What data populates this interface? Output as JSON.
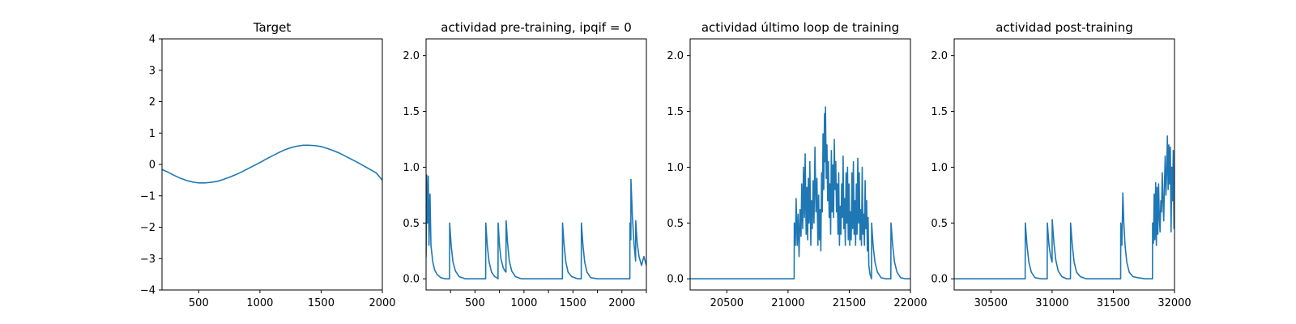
{
  "chart_data": [
    {
      "type": "line",
      "title": "Target",
      "xlim": [
        200,
        2000
      ],
      "ylim": [
        -4,
        4
      ],
      "xticks": [
        500,
        1000,
        1500,
        2000
      ],
      "yticks": [
        -4,
        -3,
        -2,
        -1,
        0,
        1,
        2,
        3,
        4
      ],
      "xticklabels": [
        "500",
        "1000",
        "1500",
        "2000"
      ],
      "yticklabels": [
        "−4",
        "−3",
        "−2",
        "−1",
        "0",
        "1",
        "2",
        "3",
        "4"
      ],
      "color": "#1f77b4",
      "series": [
        {
          "x": [
            200,
            250,
            300,
            350,
            400,
            450,
            500,
            550,
            600,
            650,
            700,
            750,
            800,
            850,
            900,
            950,
            1000,
            1050,
            1100,
            1150,
            1200,
            1250,
            1300,
            1350,
            1400,
            1450,
            1500,
            1550,
            1600,
            1650,
            1700,
            1750,
            1800,
            1850,
            1900,
            1950,
            2000
          ],
          "y": [
            -0.16,
            -0.25,
            -0.35,
            -0.44,
            -0.51,
            -0.56,
            -0.59,
            -0.59,
            -0.57,
            -0.54,
            -0.48,
            -0.41,
            -0.33,
            -0.24,
            -0.14,
            -0.04,
            0.06,
            0.17,
            0.27,
            0.37,
            0.46,
            0.53,
            0.58,
            0.61,
            0.61,
            0.6,
            0.57,
            0.51,
            0.44,
            0.36,
            0.26,
            0.16,
            0.06,
            -0.05,
            -0.16,
            -0.27,
            -0.5
          ]
        }
      ]
    },
    {
      "type": "line",
      "title": "actividad pre-training, ipqif = 0",
      "xlim": [
        200,
        2000
      ],
      "ylim": [
        -0.1,
        2.15
      ],
      "xticks": [
        400,
        600,
        800,
        1000,
        1200,
        1400,
        1600,
        1800,
        2000
      ],
      "yticks": [
        0,
        0.5,
        1,
        1.5,
        2
      ],
      "xticklabels": [
        "",
        "500",
        "",
        "1000",
        "",
        "1500",
        "",
        "2000",
        ""
      ],
      "yticklabels": [
        "0.0",
        "0.5",
        "1.0",
        "1.5",
        "2.0"
      ],
      "color": "#1f77b4",
      "series": [
        {
          "x": [
            200,
            205,
            212,
            218,
            224,
            232,
            240,
            255,
            270,
            290,
            320,
            360,
            392,
            393,
            405,
            420,
            440,
            470,
            520,
            600,
            680,
            687,
            688,
            700,
            715,
            735,
            760,
            778,
            788,
            789,
            800,
            812,
            830,
            845,
            853,
            854,
            866,
            880,
            900,
            930,
            980,
            1100,
            1200,
            1314,
            1315,
            1328,
            1342,
            1360,
            1390,
            1440,
            1468,
            1469,
            1482,
            1496,
            1515,
            1545,
            1600,
            1700,
            1780,
            1865,
            1866,
            1873,
            1874,
            1886,
            1900,
            1912,
            1913,
            1925,
            1940,
            1960,
            1980,
            2000
          ],
          "y": [
            0.2,
            0.93,
            0.5,
            0.92,
            0.3,
            0.76,
            0.3,
            0.15,
            0.08,
            0.04,
            0.01,
            0.0,
            0.0,
            0.5,
            0.3,
            0.15,
            0.07,
            0.02,
            0.0,
            0.0,
            0.0,
            0.0,
            0.5,
            0.3,
            0.15,
            0.06,
            0.02,
            0.01,
            0.0,
            0.5,
            0.3,
            0.18,
            0.1,
            0.07,
            0.06,
            0.52,
            0.32,
            0.16,
            0.07,
            0.02,
            0.0,
            0.0,
            0.0,
            0.0,
            0.5,
            0.3,
            0.15,
            0.06,
            0.02,
            0.0,
            0.0,
            0.5,
            0.3,
            0.15,
            0.06,
            0.01,
            0.0,
            0.0,
            0.0,
            0.0,
            0.5,
            0.35,
            0.89,
            0.55,
            0.3,
            0.16,
            0.52,
            0.32,
            0.2,
            0.12,
            0.2,
            0.12
          ]
        }
      ]
    },
    {
      "type": "line",
      "title": "actividad último loop de training",
      "xlim": [
        20200,
        22000
      ],
      "ylim": [
        -0.1,
        2.15
      ],
      "xticks": [
        20500,
        21000,
        21500,
        22000
      ],
      "yticks": [
        0,
        0.5,
        1,
        1.5,
        2
      ],
      "xticklabels": [
        "20500",
        "21000",
        "21500",
        "22000"
      ],
      "yticklabels": [
        "0.0",
        "0.5",
        "1.0",
        "1.5",
        "2.0"
      ],
      "color": "#1f77b4",
      "series": [
        {
          "x": [
            20200,
            21050,
            21051,
            21060,
            21066,
            21075,
            21082,
            21090,
            21098,
            21106,
            21112,
            21120,
            21126,
            21134,
            21140,
            21148,
            21154,
            21160,
            21166,
            21172,
            21178,
            21186,
            21192,
            21198,
            21205,
            21212,
            21220,
            21228,
            21236,
            21244,
            21250,
            21256,
            21262,
            21268,
            21274,
            21280,
            21286,
            21292,
            21298,
            21302,
            21306,
            21312,
            21318,
            21324,
            21330,
            21336,
            21342,
            21348,
            21354,
            21360,
            21366,
            21372,
            21378,
            21384,
            21390,
            21396,
            21402,
            21408,
            21414,
            21420,
            21426,
            21432,
            21438,
            21444,
            21450,
            21456,
            21462,
            21468,
            21474,
            21480,
            21486,
            21492,
            21498,
            21504,
            21510,
            21516,
            21522,
            21528,
            21534,
            21540,
            21546,
            21552,
            21558,
            21564,
            21570,
            21576,
            21582,
            21588,
            21594,
            21600,
            21606,
            21612,
            21618,
            21624,
            21630,
            21636,
            21642,
            21648,
            21654,
            21660,
            21670,
            21682,
            21683,
            21695,
            21710,
            21730,
            21760,
            21800,
            21840,
            21841,
            21855,
            21870,
            21890,
            21920,
            21960,
            22000
          ],
          "y": [
            0.0,
            0.0,
            0.5,
            0.3,
            0.72,
            0.3,
            0.58,
            0.2,
            0.62,
            0.38,
            0.85,
            0.45,
            1.0,
            0.55,
            1.12,
            0.4,
            0.82,
            0.35,
            0.9,
            0.5,
            1.05,
            0.3,
            0.7,
            0.45,
            0.88,
            0.5,
            1.18,
            0.6,
            0.9,
            0.3,
            0.75,
            0.35,
            0.62,
            0.25,
            0.95,
            0.6,
            1.3,
            0.8,
            1.48,
            1.05,
            1.54,
            0.9,
            1.2,
            0.7,
            1.05,
            0.55,
            0.85,
            0.4,
            1.15,
            0.6,
            1.02,
            0.55,
            1.25,
            0.8,
            1.05,
            0.6,
            0.85,
            0.4,
            0.95,
            0.3,
            0.65,
            0.4,
            0.85,
            0.55,
            1.1,
            0.45,
            0.72,
            0.3,
            0.95,
            0.5,
            1.0,
            0.35,
            0.85,
            0.3,
            0.6,
            0.35,
            0.95,
            0.45,
            1.05,
            0.4,
            0.7,
            0.3,
            0.85,
            0.4,
            1.08,
            0.5,
            0.95,
            0.35,
            0.62,
            0.3,
            1.0,
            0.4,
            0.58,
            0.3,
            0.88,
            0.45,
            0.7,
            0.25,
            0.55,
            0.12,
            0.04,
            0.0,
            0.5,
            0.3,
            0.15,
            0.06,
            0.01,
            0.0,
            0.0,
            0.5,
            0.3,
            0.15,
            0.06,
            0.01,
            0.0,
            0.0
          ]
        }
      ]
    },
    {
      "type": "line",
      "title": "actividad post-training",
      "xlim": [
        30200,
        32000
      ],
      "ylim": [
        -0.1,
        2.15
      ],
      "xticks": [
        30500,
        31000,
        31500,
        32000
      ],
      "yticks": [
        0,
        0.5,
        1,
        1.5,
        2
      ],
      "xticklabels": [
        "30500",
        "31000",
        "31500",
        "32000"
      ],
      "yticklabels": [
        "0.0",
        "0.5",
        "1.0",
        "1.5",
        "2.0"
      ],
      "color": "#1f77b4",
      "series": [
        {
          "x": [
            30200,
            30780,
            30781,
            30795,
            30810,
            30830,
            30860,
            30910,
            30960,
            30961,
            30975,
            30988,
            31000,
            31001,
            31015,
            31030,
            31050,
            31080,
            31120,
            31150,
            31151,
            31165,
            31180,
            31200,
            31230,
            31280,
            31400,
            31560,
            31561,
            31570,
            31578,
            31586,
            31596,
            31610,
            31630,
            31660,
            31700,
            31760,
            31820,
            31821,
            31828,
            31834,
            31840,
            31846,
            31852,
            31858,
            31864,
            31870,
            31876,
            31882,
            31888,
            31894,
            31900,
            31906,
            31912,
            31918,
            31924,
            31930,
            31936,
            31942,
            31948,
            31954,
            31960,
            31966,
            31972,
            31978,
            31984,
            31990,
            31996,
            32000
          ],
          "y": [
            0.0,
            0.0,
            0.5,
            0.3,
            0.15,
            0.06,
            0.01,
            0.0,
            0.0,
            0.5,
            0.3,
            0.2,
            0.15,
            0.53,
            0.32,
            0.17,
            0.07,
            0.02,
            0.0,
            0.0,
            0.5,
            0.3,
            0.15,
            0.06,
            0.02,
            0.0,
            0.0,
            0.0,
            0.5,
            0.3,
            0.77,
            0.5,
            0.3,
            0.15,
            0.06,
            0.02,
            0.01,
            0.0,
            0.0,
            0.5,
            0.32,
            0.76,
            0.35,
            0.86,
            0.3,
            0.82,
            0.4,
            0.85,
            0.55,
            0.42,
            0.7,
            0.6,
            0.95,
            0.7,
            0.52,
            0.85,
            1.1,
            0.75,
            0.95,
            1.28,
            0.8,
            1.2,
            0.85,
            1.18,
            0.42,
            1.0,
            0.7,
            1.15,
            0.45,
            0.8
          ]
        }
      ]
    }
  ]
}
